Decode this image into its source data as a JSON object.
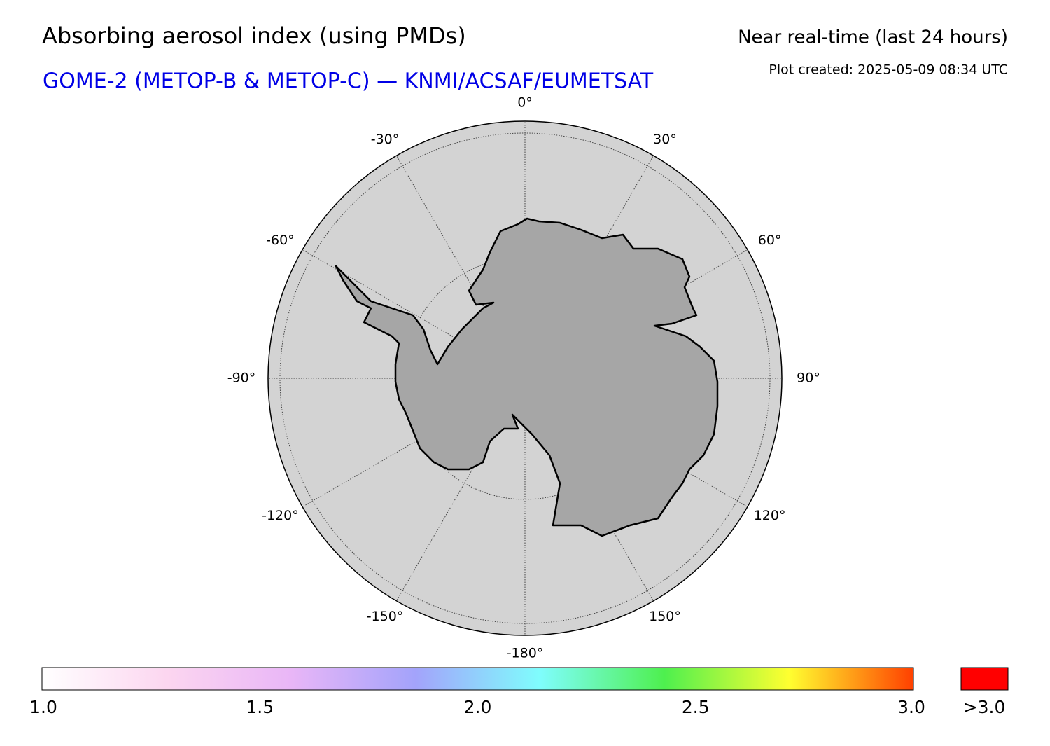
{
  "header": {
    "title": "Absorbing aerosol index (using PMDs)",
    "subtitle": "GOME-2 (METOP-B & METOP-C) — KNMI/ACSAF/EUMETSAT",
    "mode": "Near real-time (last 24 hours)",
    "created": "Plot created: 2025-05-09 08:34 UTC"
  },
  "map": {
    "meridians": [
      {
        "value": 0,
        "label": "0°"
      },
      {
        "value": 30,
        "label": "30°"
      },
      {
        "value": 60,
        "label": "60°"
      },
      {
        "value": 90,
        "label": "90°"
      },
      {
        "value": 120,
        "label": "120°"
      },
      {
        "value": 150,
        "label": "150°"
      },
      {
        "value": -180,
        "label": "-180°"
      },
      {
        "value": -150,
        "label": "-150°"
      },
      {
        "value": -120,
        "label": "-120°"
      },
      {
        "value": -90,
        "label": "-90°"
      },
      {
        "value": -60,
        "label": "-60°"
      },
      {
        "value": -30,
        "label": "-30°"
      }
    ]
  },
  "colorbar": {
    "lim": [
      1,
      3
    ],
    "ticks": [
      {
        "value": 1,
        "label": "1.0"
      },
      {
        "value": 1.5,
        "label": "1.5"
      },
      {
        "value": 2,
        "label": "2.0"
      },
      {
        "value": 2.5,
        "label": "2.5"
      },
      {
        "value": 3,
        "label": "3.0"
      }
    ],
    "colors": [
      "#ffffff",
      "#fcd6f0",
      "#e9b6f7",
      "#a3a3fb",
      "#7ffdfd",
      "#4ef04e",
      "#ffff30",
      "#ff4000"
    ],
    "over_label": ">3.0",
    "over_color": "#ff0000"
  }
}
